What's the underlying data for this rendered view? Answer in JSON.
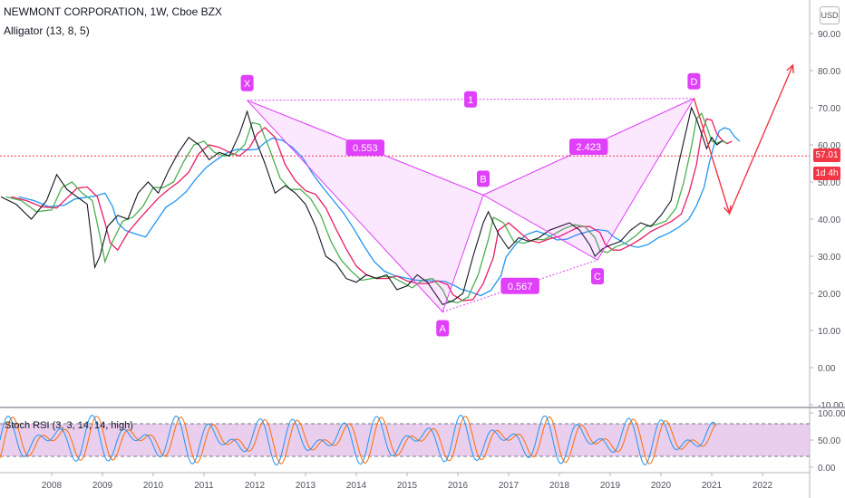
{
  "header": {
    "symbol_line": "NEWMONT CORPORATION, 1W, Cboe BZX",
    "indicator_line": "Alligator (13, 8, 5)",
    "currency_button": "USD"
  },
  "price_badges": {
    "last_price": "57.01",
    "countdown": "1d 4h"
  },
  "colors": {
    "price": "#131722",
    "alligator_jaw": "#2196f3",
    "alligator_teeth": "#e91e63",
    "alligator_lips": "#4caf50",
    "pattern": "#e040fb",
    "projection": "#f23645",
    "stoch_k": "#2196f3",
    "stoch_d": "#ff6d00",
    "stoch_band": "#e1bee7"
  },
  "chart_data": [
    {
      "type": "line",
      "x_ticks": [
        "2008",
        "2009",
        "2010",
        "2011",
        "2012",
        "2013",
        "2014",
        "2015",
        "2016",
        "2017",
        "2018",
        "2019",
        "2020",
        "2021",
        "2022"
      ],
      "y_ticks": [
        "90.00",
        "80.00",
        "70.00",
        "60.00",
        "50.00",
        "40.00",
        "30.00",
        "20.00",
        "10.00",
        "0.00",
        "-10.00"
      ],
      "ylim": [
        -10,
        95
      ],
      "grid": false,
      "series": [
        {
          "values": [
            [
              2007.0,
              46
            ],
            [
              2007.3,
              44
            ],
            [
              2007.6,
              40
            ],
            [
              2007.9,
              45
            ],
            [
              2008.1,
              52
            ],
            [
              2008.3,
              48
            ],
            [
              2008.5,
              46
            ],
            [
              2008.7,
              44
            ],
            [
              2008.85,
              27
            ],
            [
              2008.95,
              30
            ],
            [
              2009.1,
              38
            ],
            [
              2009.3,
              41
            ],
            [
              2009.5,
              40
            ],
            [
              2009.7,
              47
            ],
            [
              2009.9,
              50
            ],
            [
              2010.1,
              47
            ],
            [
              2010.3,
              53
            ],
            [
              2010.5,
              58
            ],
            [
              2010.7,
              62
            ],
            [
              2010.9,
              60
            ],
            [
              2011.1,
              56
            ],
            [
              2011.3,
              58
            ],
            [
              2011.5,
              57
            ],
            [
              2011.7,
              63
            ],
            [
              2011.85,
              69
            ],
            [
              2012.0,
              62
            ],
            [
              2012.2,
              55
            ],
            [
              2012.4,
              47
            ],
            [
              2012.6,
              49
            ],
            [
              2012.8,
              47
            ],
            [
              2013.0,
              44
            ],
            [
              2013.2,
              38
            ],
            [
              2013.4,
              30
            ],
            [
              2013.6,
              28
            ],
            [
              2013.8,
              24
            ],
            [
              2014.0,
              23
            ],
            [
              2014.2,
              25
            ],
            [
              2014.4,
              24
            ],
            [
              2014.6,
              25
            ],
            [
              2014.8,
              21
            ],
            [
              2015.0,
              22
            ],
            [
              2015.2,
              25
            ],
            [
              2015.4,
              23
            ],
            [
              2015.6,
              19
            ],
            [
              2015.7,
              17
            ],
            [
              2015.9,
              18
            ],
            [
              2016.1,
              20
            ],
            [
              2016.3,
              30
            ],
            [
              2016.5,
              39
            ],
            [
              2016.6,
              42
            ],
            [
              2016.8,
              36
            ],
            [
              2017.0,
              32
            ],
            [
              2017.2,
              35
            ],
            [
              2017.4,
              34
            ],
            [
              2017.6,
              35
            ],
            [
              2017.8,
              37
            ],
            [
              2018.0,
              38
            ],
            [
              2018.2,
              39
            ],
            [
              2018.4,
              37
            ],
            [
              2018.6,
              33
            ],
            [
              2018.7,
              30
            ],
            [
              2018.85,
              32
            ],
            [
              2019.0,
              33
            ],
            [
              2019.2,
              34
            ],
            [
              2019.4,
              37
            ],
            [
              2019.6,
              39
            ],
            [
              2019.8,
              38
            ],
            [
              2020.0,
              41
            ],
            [
              2020.2,
              45
            ],
            [
              2020.35,
              55
            ],
            [
              2020.5,
              64
            ],
            [
              2020.6,
              70
            ],
            [
              2020.7,
              67
            ],
            [
              2020.8,
              63
            ],
            [
              2020.9,
              59
            ],
            [
              2021.0,
              62
            ],
            [
              2021.1,
              60
            ],
            [
              2021.2,
              61
            ]
          ]
        }
      ],
      "xabcd_pattern": {
        "points": {
          "X": [
            2011.85,
            72
          ],
          "A": [
            2015.7,
            15
          ],
          "B": [
            2016.5,
            46.5
          ],
          "C": [
            2018.75,
            29
          ],
          "D": [
            2020.65,
            72.5
          ]
        },
        "point_labels": [
          "X",
          "A",
          "B",
          "C",
          "D"
        ],
        "ratios": [
          "0.553",
          "0.567",
          "2.423",
          "1"
        ]
      },
      "projection": [
        [
          2020.65,
          72.5
        ],
        [
          2021.35,
          41.5
        ],
        [
          2022.6,
          81.5
        ]
      ],
      "last_price": 57.01
    },
    {
      "type": "line",
      "title": "Stoch RSI (3, 3, 14, 14, high)",
      "y_ticks": [
        "100.00",
        "50.00",
        "0.00"
      ],
      "bands": [
        20,
        80
      ],
      "ylim": [
        0,
        100
      ]
    }
  ]
}
